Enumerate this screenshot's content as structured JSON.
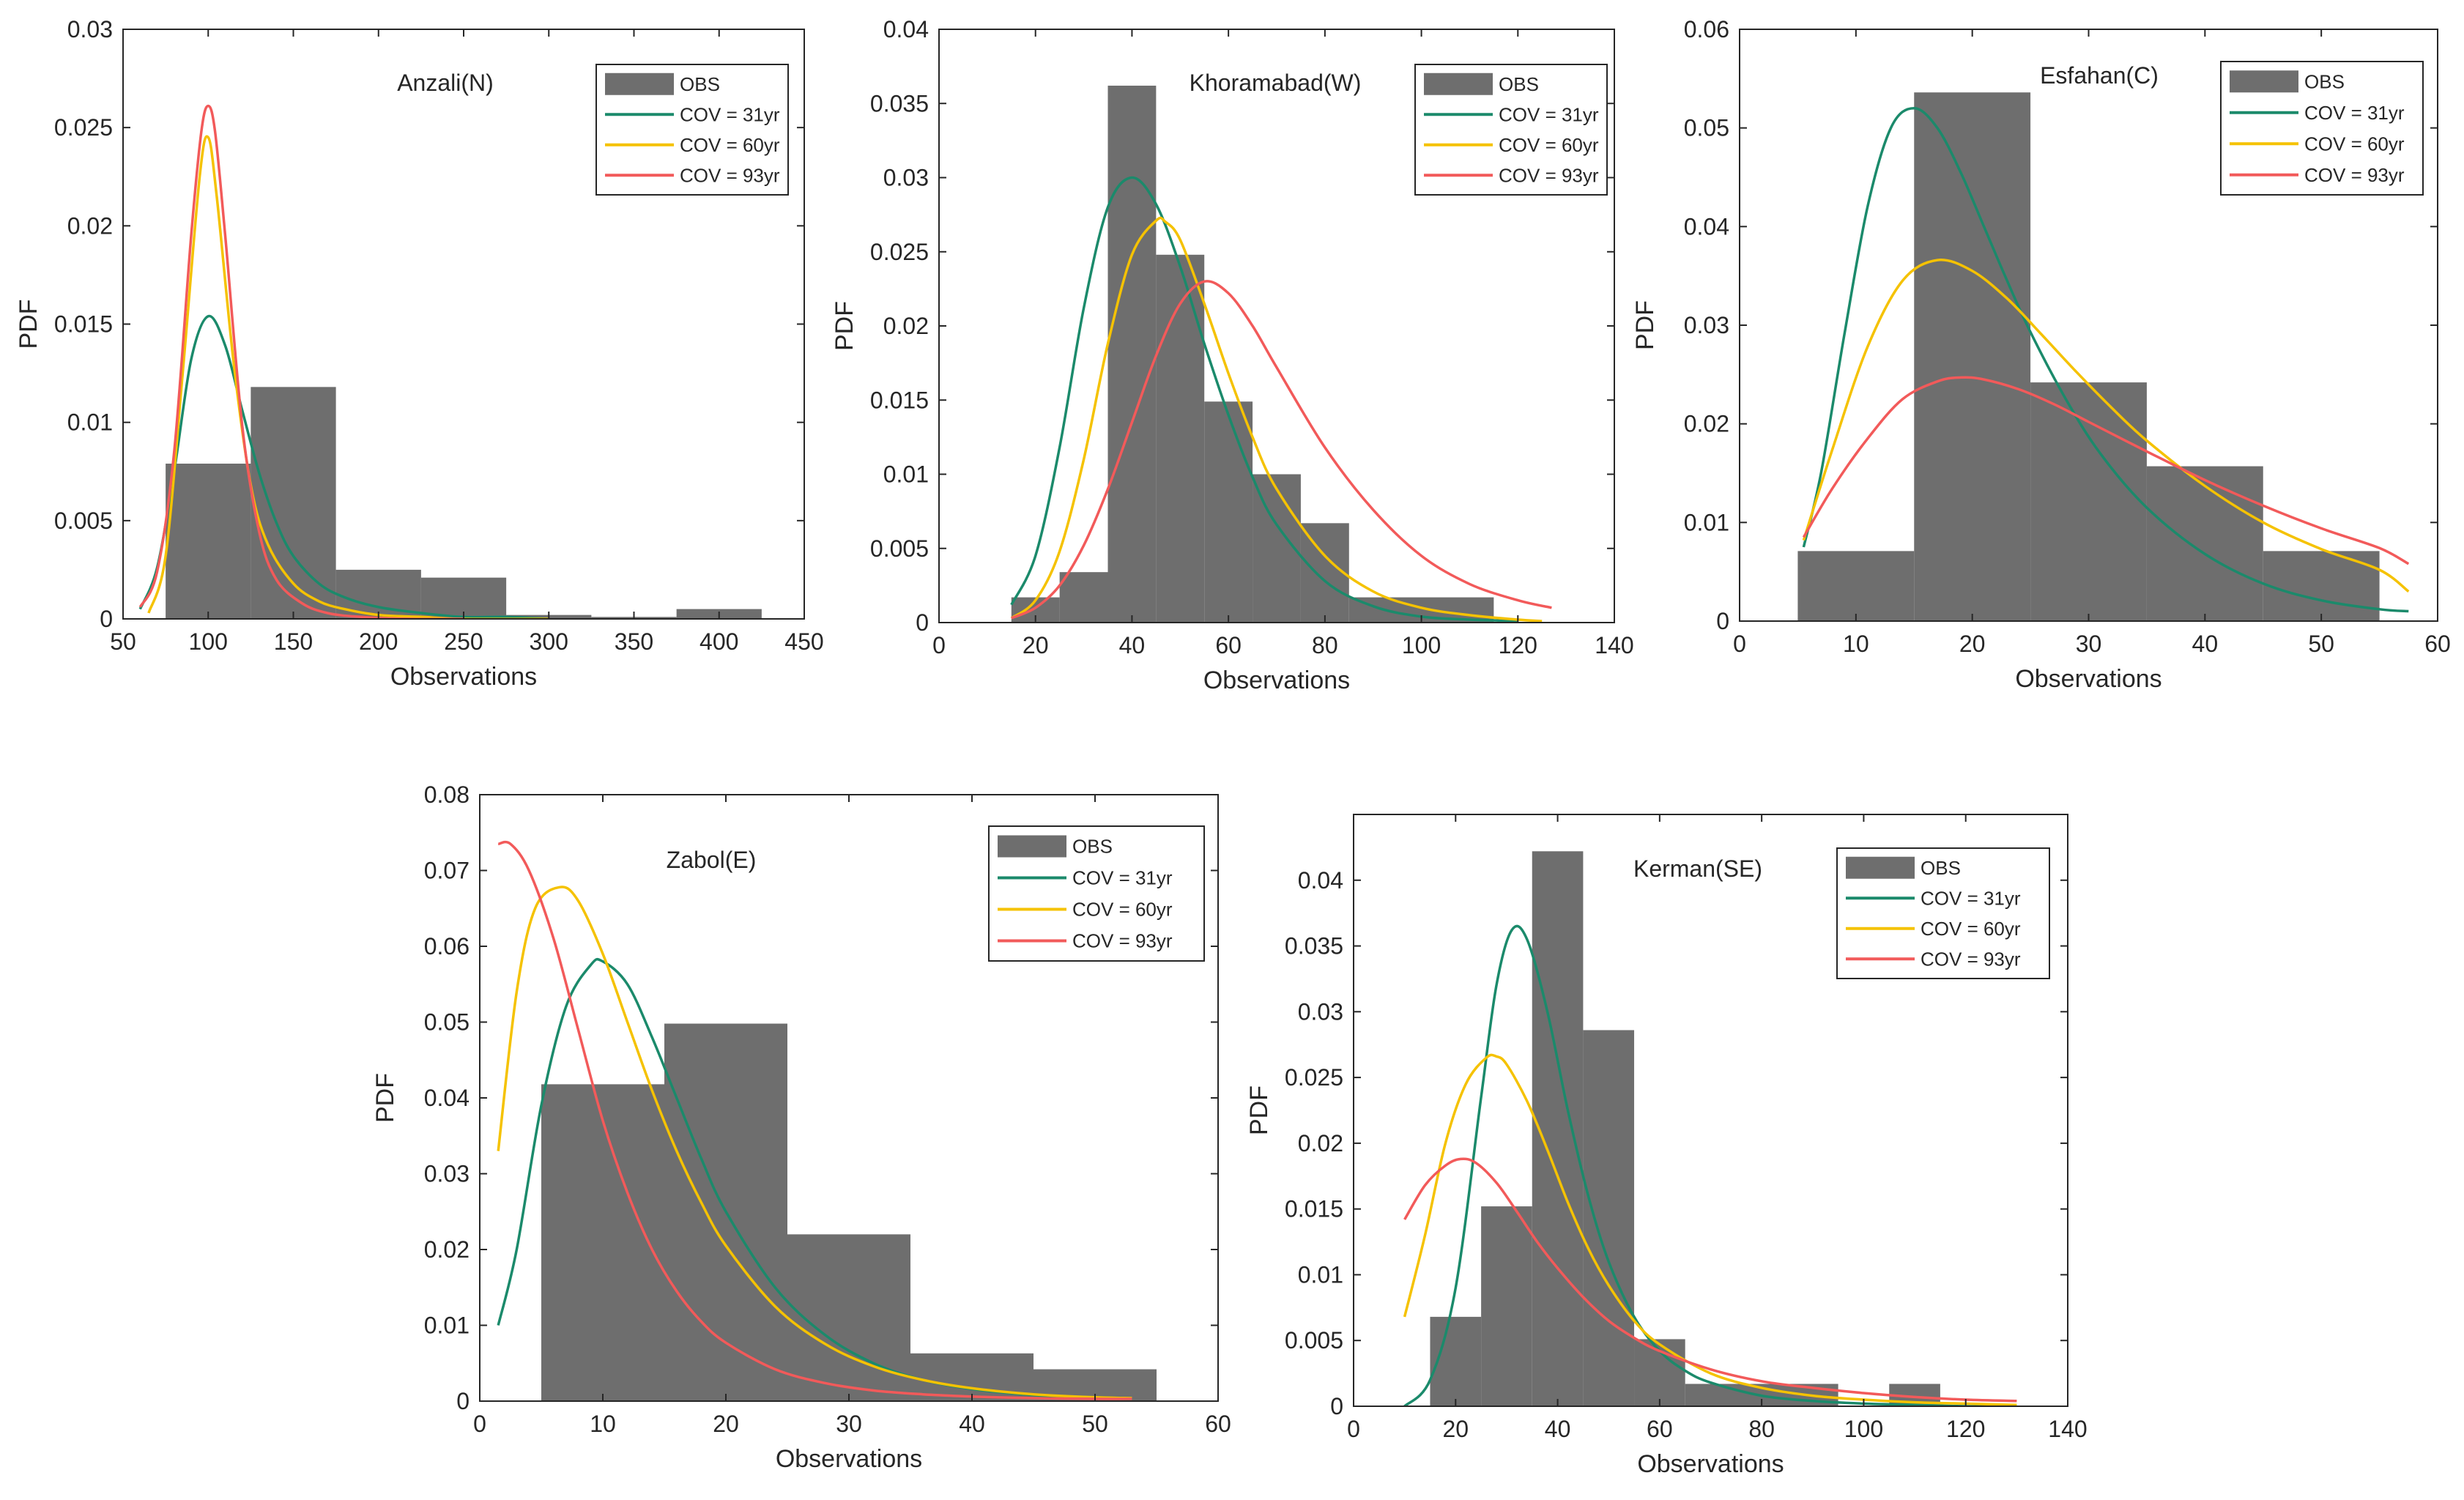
{
  "colors": {
    "obs": "#6e6e6e",
    "cov31": "#1b8a6b",
    "cov60": "#f5c200",
    "cov93": "#f25a5a"
  },
  "chart_data": [
    {
      "type": "bar",
      "title": "Anzali(N)",
      "xlabel": "Observations",
      "ylabel": "PDF",
      "xlim": [
        50,
        450
      ],
      "ylim": [
        0,
        0.03
      ],
      "xticks": [
        "50",
        "100",
        "150",
        "200",
        "250",
        "300",
        "350",
        "400",
        "450"
      ],
      "yticks": [
        "0",
        "0.005",
        "0.01",
        "0.015",
        "0.02",
        "0.025",
        "0.03"
      ],
      "legend": [
        "OBS",
        "COV = 31yr",
        "COV = 60yr",
        "COV = 93yr"
      ],
      "legend_position": "top-right",
      "histogram": [
        {
          "x0": 75,
          "x1": 125,
          "value": 0.0079
        },
        {
          "x0": 125,
          "x1": 175,
          "value": 0.0118
        },
        {
          "x0": 175,
          "x1": 225,
          "value": 0.0025
        },
        {
          "x0": 225,
          "x1": 275,
          "value": 0.0021
        },
        {
          "x0": 275,
          "x1": 325,
          "value": 0.0002
        },
        {
          "x0": 325,
          "x1": 375,
          "value": 0.0001
        },
        {
          "x0": 375,
          "x1": 425,
          "value": 0.0005
        }
      ],
      "series": [
        {
          "name": "COV = 31yr",
          "x": [
            60,
            70,
            80,
            90,
            100,
            110,
            120,
            130,
            140,
            150,
            165,
            180,
            200,
            225,
            250,
            275,
            300
          ],
          "values": [
            0.0005,
            0.0026,
            0.0075,
            0.0132,
            0.0154,
            0.0139,
            0.0106,
            0.0074,
            0.0049,
            0.0032,
            0.0018,
            0.0011,
            0.0006,
            0.0003,
            0.0001,
            0.0001,
            0.0
          ]
        },
        {
          "name": "COV = 60yr",
          "x": [
            65,
            75,
            85,
            95,
            100,
            105,
            115,
            125,
            135,
            150,
            165,
            180,
            200,
            225,
            250,
            300
          ],
          "values": [
            0.0003,
            0.0032,
            0.0125,
            0.0225,
            0.0245,
            0.0215,
            0.013,
            0.0068,
            0.0038,
            0.0018,
            0.0009,
            0.0005,
            0.0002,
            0.0001,
            0.0,
            0.0
          ]
        },
        {
          "name": "COV = 93yr",
          "x": [
            60,
            70,
            80,
            90,
            96,
            100,
            104,
            110,
            120,
            130,
            140,
            155,
            170,
            190,
            220,
            250
          ],
          "values": [
            0.0006,
            0.0024,
            0.0085,
            0.0195,
            0.0248,
            0.0261,
            0.0248,
            0.0195,
            0.0098,
            0.0044,
            0.002,
            0.0008,
            0.0003,
            0.0001,
            0.0,
            0.0
          ]
        }
      ]
    },
    {
      "type": "bar",
      "title": "Khoramabad(W)",
      "xlabel": "Observations",
      "ylabel": "PDF",
      "xlim": [
        0,
        140
      ],
      "ylim": [
        0,
        0.04
      ],
      "xticks": [
        "0",
        "20",
        "40",
        "60",
        "80",
        "100",
        "120",
        "140"
      ],
      "yticks": [
        "0",
        "0.005",
        "0.01",
        "0.015",
        "0.02",
        "0.025",
        "0.03",
        "0.035",
        "0.04"
      ],
      "legend": [
        "OBS",
        "COV = 31yr",
        "COV = 60yr",
        "COV = 93yr"
      ],
      "legend_position": "top-right",
      "histogram": [
        {
          "x0": 15,
          "x1": 25,
          "value": 0.0017
        },
        {
          "x0": 25,
          "x1": 35,
          "value": 0.0034
        },
        {
          "x0": 35,
          "x1": 45,
          "value": 0.0362
        },
        {
          "x0": 45,
          "x1": 55,
          "value": 0.0248
        },
        {
          "x0": 55,
          "x1": 65,
          "value": 0.0149
        },
        {
          "x0": 65,
          "x1": 75,
          "value": 0.01
        },
        {
          "x0": 75,
          "x1": 85,
          "value": 0.0067
        },
        {
          "x0": 85,
          "x1": 115,
          "value": 0.0017
        }
      ],
      "series": [
        {
          "name": "COV = 31yr",
          "x": [
            15,
            20,
            25,
            30,
            35,
            40,
            45,
            50,
            55,
            60,
            65,
            70,
            80,
            90,
            100,
            110,
            120
          ],
          "values": [
            0.0012,
            0.0045,
            0.0118,
            0.0212,
            0.028,
            0.03,
            0.0282,
            0.024,
            0.0188,
            0.014,
            0.0098,
            0.0066,
            0.0028,
            0.0011,
            0.0004,
            0.0002,
            0.0001
          ]
        },
        {
          "name": "COV = 60yr",
          "x": [
            15,
            20,
            25,
            30,
            35,
            40,
            45,
            47,
            50,
            55,
            60,
            65,
            70,
            80,
            90,
            100,
            110,
            120,
            125
          ],
          "values": [
            0.0003,
            0.0015,
            0.0048,
            0.011,
            0.0188,
            0.0248,
            0.0271,
            0.027,
            0.0258,
            0.0215,
            0.0168,
            0.0125,
            0.009,
            0.0045,
            0.0021,
            0.001,
            0.0005,
            0.0002,
            0.0001
          ]
        },
        {
          "name": "COV = 93yr",
          "x": [
            15,
            20,
            25,
            30,
            35,
            40,
            45,
            50,
            55,
            60,
            65,
            70,
            80,
            90,
            100,
            110,
            120,
            127
          ],
          "values": [
            0.0003,
            0.001,
            0.0025,
            0.0052,
            0.009,
            0.0135,
            0.018,
            0.0215,
            0.023,
            0.0222,
            0.02,
            0.0172,
            0.0118,
            0.0076,
            0.0045,
            0.0026,
            0.0015,
            0.001
          ]
        }
      ]
    },
    {
      "type": "bar",
      "title": "Esfahan(C)",
      "xlabel": "Observations",
      "ylabel": "PDF",
      "xlim": [
        0,
        60
      ],
      "ylim": [
        0,
        0.06
      ],
      "xticks": [
        "0",
        "10",
        "20",
        "30",
        "40",
        "50",
        "60"
      ],
      "yticks": [
        "0",
        "0.01",
        "0.02",
        "0.03",
        "0.04",
        "0.05",
        "0.06"
      ],
      "legend": [
        "OBS",
        "COV = 31yr",
        "COV = 60yr",
        "COV = 93yr"
      ],
      "legend_position": "top-right",
      "histogram": [
        {
          "x0": 5,
          "x1": 15,
          "value": 0.0071
        },
        {
          "x0": 15,
          "x1": 25,
          "value": 0.0536
        },
        {
          "x0": 25,
          "x1": 35,
          "value": 0.0242
        },
        {
          "x0": 35,
          "x1": 45,
          "value": 0.0157
        },
        {
          "x0": 45,
          "x1": 55,
          "value": 0.0071
        }
      ],
      "series": [
        {
          "name": "COV = 31yr",
          "x": [
            5.5,
            7,
            9,
            11,
            13,
            15,
            17,
            19,
            21,
            23,
            25,
            28,
            31,
            35,
            40,
            45,
            50,
            55,
            57.5
          ],
          "values": [
            0.0075,
            0.015,
            0.029,
            0.042,
            0.05,
            0.052,
            0.05,
            0.0455,
            0.04,
            0.0345,
            0.0293,
            0.0226,
            0.017,
            0.0115,
            0.0068,
            0.0038,
            0.0021,
            0.0012,
            0.001
          ]
        },
        {
          "name": "COV = 60yr",
          "x": [
            5.5,
            8,
            11,
            14,
            17,
            20,
            23,
            26,
            29,
            32,
            35,
            40,
            45,
            50,
            55,
            57.5
          ],
          "values": [
            0.0082,
            0.0175,
            0.0278,
            0.0345,
            0.0366,
            0.0355,
            0.0327,
            0.029,
            0.0252,
            0.0216,
            0.0183,
            0.0137,
            0.01,
            0.0073,
            0.0052,
            0.003
          ]
        },
        {
          "name": "COV = 93yr",
          "x": [
            5.5,
            8,
            11,
            14,
            17,
            19,
            21,
            24,
            27,
            30,
            35,
            40,
            45,
            50,
            55,
            57.5
          ],
          "values": [
            0.0085,
            0.0135,
            0.0185,
            0.0225,
            0.0243,
            0.0247,
            0.0245,
            0.0235,
            0.022,
            0.0202,
            0.0172,
            0.0143,
            0.0117,
            0.0094,
            0.0074,
            0.0058
          ]
        }
      ]
    },
    {
      "type": "bar",
      "title": "Zabol(E)",
      "xlabel": "Observations",
      "ylabel": "PDF",
      "xlim": [
        0,
        60
      ],
      "ylim": [
        0,
        0.08
      ],
      "xticks": [
        "0",
        "10",
        "20",
        "30",
        "40",
        "50",
        "60"
      ],
      "yticks": [
        "0",
        "0.01",
        "0.02",
        "0.03",
        "0.04",
        "0.05",
        "0.06",
        "0.07",
        "0.08"
      ],
      "legend": [
        "OBS",
        "COV = 31yr",
        "COV = 60yr",
        "COV = 93yr"
      ],
      "legend_position": "top-right",
      "histogram": [
        {
          "x0": 5,
          "x1": 15,
          "value": 0.0418
        },
        {
          "x0": 15,
          "x1": 25,
          "value": 0.0498
        },
        {
          "x0": 25,
          "x1": 35,
          "value": 0.022
        },
        {
          "x0": 35,
          "x1": 45,
          "value": 0.0063
        },
        {
          "x0": 45,
          "x1": 55,
          "value": 0.0042
        }
      ],
      "series": [
        {
          "name": "COV = 31yr",
          "x": [
            1.5,
            3,
            5,
            7,
            9,
            10,
            12,
            14,
            16,
            18,
            20,
            24,
            28,
            32,
            36,
            40,
            45,
            50,
            53
          ],
          "values": [
            0.01,
            0.02,
            0.039,
            0.052,
            0.0575,
            0.058,
            0.055,
            0.048,
            0.04,
            0.032,
            0.025,
            0.015,
            0.0088,
            0.005,
            0.0028,
            0.0016,
            0.0008,
            0.0004,
            0.0003
          ]
        },
        {
          "name": "COV = 60yr",
          "x": [
            1.5,
            3,
            4.5,
            6.5,
            8,
            10,
            12,
            14,
            16,
            18,
            20,
            24,
            28,
            32,
            36,
            40,
            45,
            50,
            53
          ],
          "values": [
            0.033,
            0.054,
            0.065,
            0.0678,
            0.066,
            0.059,
            0.05,
            0.041,
            0.033,
            0.0262,
            0.0205,
            0.0125,
            0.0076,
            0.0046,
            0.0028,
            0.0017,
            0.0009,
            0.0005,
            0.0004
          ]
        },
        {
          "name": "COV = 93yr",
          "x": [
            1.5,
            2.5,
            4,
            6,
            8,
            10,
            12,
            14,
            16,
            18,
            20,
            24,
            28,
            32,
            36,
            40,
            45,
            50,
            53
          ],
          "values": [
            0.0735,
            0.0735,
            0.07,
            0.061,
            0.049,
            0.037,
            0.0275,
            0.02,
            0.0145,
            0.0105,
            0.0077,
            0.0042,
            0.0024,
            0.0014,
            0.0009,
            0.0006,
            0.0004,
            0.0003,
            0.0003
          ]
        }
      ]
    },
    {
      "type": "bar",
      "title": "Kerman(SE)",
      "xlabel": "Observations",
      "ylabel": "PDF",
      "xlim": [
        0,
        140
      ],
      "ylim": [
        0,
        0.045
      ],
      "xticks": [
        "0",
        "20",
        "40",
        "60",
        "80",
        "100",
        "120",
        "140"
      ],
      "yticks": [
        "0",
        "0.005",
        "0.01",
        "0.015",
        "0.02",
        "0.025",
        "0.03",
        "0.035",
        "0.04"
      ],
      "legend": [
        "OBS",
        "COV = 31yr",
        "COV = 60yr",
        "COV = 93yr"
      ],
      "legend_position": "top-right",
      "histogram": [
        {
          "x0": 15,
          "x1": 25,
          "value": 0.0068
        },
        {
          "x0": 25,
          "x1": 35,
          "value": 0.0152
        },
        {
          "x0": 35,
          "x1": 45,
          "value": 0.0422
        },
        {
          "x0": 45,
          "x1": 55,
          "value": 0.0286
        },
        {
          "x0": 55,
          "x1": 65,
          "value": 0.0051
        },
        {
          "x0": 65,
          "x1": 95,
          "value": 0.0017
        },
        {
          "x0": 105,
          "x1": 115,
          "value": 0.0017
        }
      ],
      "series": [
        {
          "name": "COV = 31yr",
          "x": [
            10,
            15,
            20,
            25,
            28,
            31,
            34,
            38,
            42,
            46,
            50,
            55,
            60,
            65,
            70,
            80,
            90,
            100,
            110,
            120,
            130
          ],
          "values": [
            0.0,
            0.002,
            0.009,
            0.0235,
            0.032,
            0.0362,
            0.0355,
            0.03,
            0.0225,
            0.016,
            0.011,
            0.0068,
            0.0042,
            0.0027,
            0.0018,
            0.0008,
            0.0004,
            0.0002,
            0.0001,
            0.0,
            0.0
          ]
        },
        {
          "name": "COV = 60yr",
          "x": [
            10,
            14,
            18,
            22,
            26,
            28,
            30,
            34,
            38,
            42,
            46,
            50,
            55,
            60,
            70,
            80,
            90,
            100,
            110,
            120,
            130
          ],
          "values": [
            0.0068,
            0.013,
            0.02,
            0.0245,
            0.0265,
            0.0266,
            0.026,
            0.0232,
            0.0195,
            0.0155,
            0.012,
            0.0092,
            0.0065,
            0.0047,
            0.0025,
            0.0014,
            0.0008,
            0.0005,
            0.0003,
            0.0002,
            0.0001
          ]
        },
        {
          "name": "COV = 93yr",
          "x": [
            10,
            14,
            18,
            21,
            24,
            28,
            32,
            36,
            40,
            45,
            50,
            55,
            60,
            70,
            80,
            90,
            100,
            110,
            120,
            130
          ],
          "values": [
            0.0142,
            0.0168,
            0.0183,
            0.0188,
            0.0185,
            0.017,
            0.0148,
            0.0125,
            0.0105,
            0.0083,
            0.0065,
            0.0052,
            0.0042,
            0.0028,
            0.0019,
            0.0014,
            0.001,
            0.0007,
            0.0005,
            0.0004
          ]
        }
      ]
    }
  ]
}
